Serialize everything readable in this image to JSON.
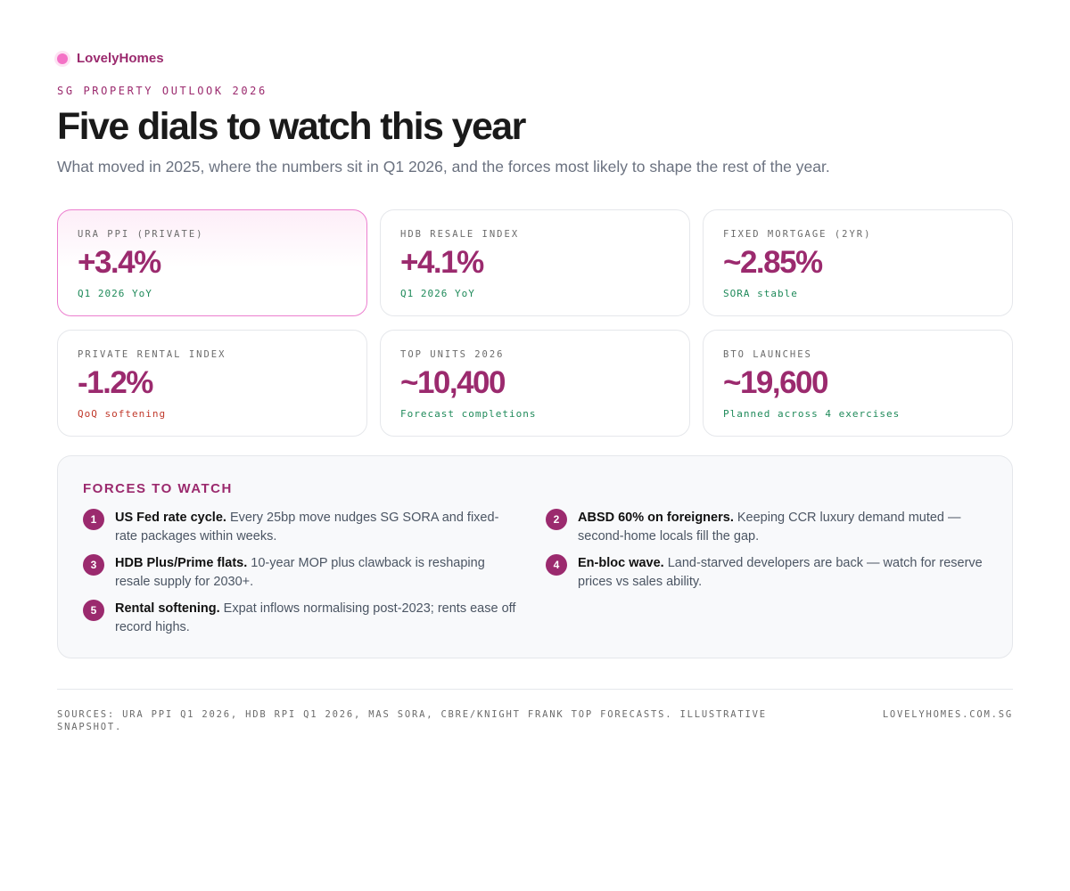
{
  "brand": {
    "name": "LovelyHomes"
  },
  "header": {
    "eyebrow": "SG PROPERTY OUTLOOK 2026",
    "title": "Five dials to watch this year",
    "subtitle": "What moved in 2025, where the numbers sit in Q1 2026, and the forces most likely to shape the rest of the year."
  },
  "colors": {
    "accent": "#9b2a6e",
    "positive": "#1f8a5a",
    "negative": "#c0392b",
    "highlight_border": "#ec7fcf"
  },
  "cards": [
    {
      "label": "URA PPI (PRIVATE)",
      "value": "+3.4%",
      "note": "Q1 2026 YoY",
      "tone": "positive"
    },
    {
      "label": "HDB RESALE INDEX",
      "value": "+4.1%",
      "note": "Q1 2026 YoY",
      "tone": "positive"
    },
    {
      "label": "FIXED MORTGAGE (2YR)",
      "value": "~2.85%",
      "note": "SORA stable",
      "tone": "positive"
    },
    {
      "label": "PRIVATE RENTAL INDEX",
      "value": "-1.2%",
      "note": "QoQ softening",
      "tone": "negative"
    },
    {
      "label": "TOP UNITS 2026",
      "value": "~10,400",
      "note": "Forecast completions",
      "tone": "positive"
    },
    {
      "label": "BTO LAUNCHES",
      "value": "~19,600",
      "note": "Planned across 4 exercises",
      "tone": "positive"
    }
  ],
  "forces": {
    "title": "FORCES TO WATCH",
    "items": [
      {
        "num": "1",
        "head": "US Fed rate cycle.",
        "body": " Every 25bp move nudges SG SORA and fixed-rate packages within weeks."
      },
      {
        "num": "2",
        "head": "ABSD 60% on foreigners.",
        "body": " Keeping CCR luxury demand muted — second-home locals fill the gap."
      },
      {
        "num": "3",
        "head": "HDB Plus/Prime flats.",
        "body": " 10-year MOP plus clawback is reshaping resale supply for 2030+."
      },
      {
        "num": "4",
        "head": "En-bloc wave.",
        "body": " Land-starved developers are back — watch for reserve prices vs sales ability."
      },
      {
        "num": "5",
        "head": "Rental softening.",
        "body": " Expat inflows normalising post-2023; rents ease off record highs."
      }
    ]
  },
  "footer": {
    "sources": "SOURCES: URA PPI Q1 2026, HDB RPI Q1 2026, MAS SORA, CBRE/KNIGHT FRANK TOP FORECASTS. ILLUSTRATIVE SNAPSHOT.",
    "site": "LOVELYHOMES.COM.SG"
  }
}
